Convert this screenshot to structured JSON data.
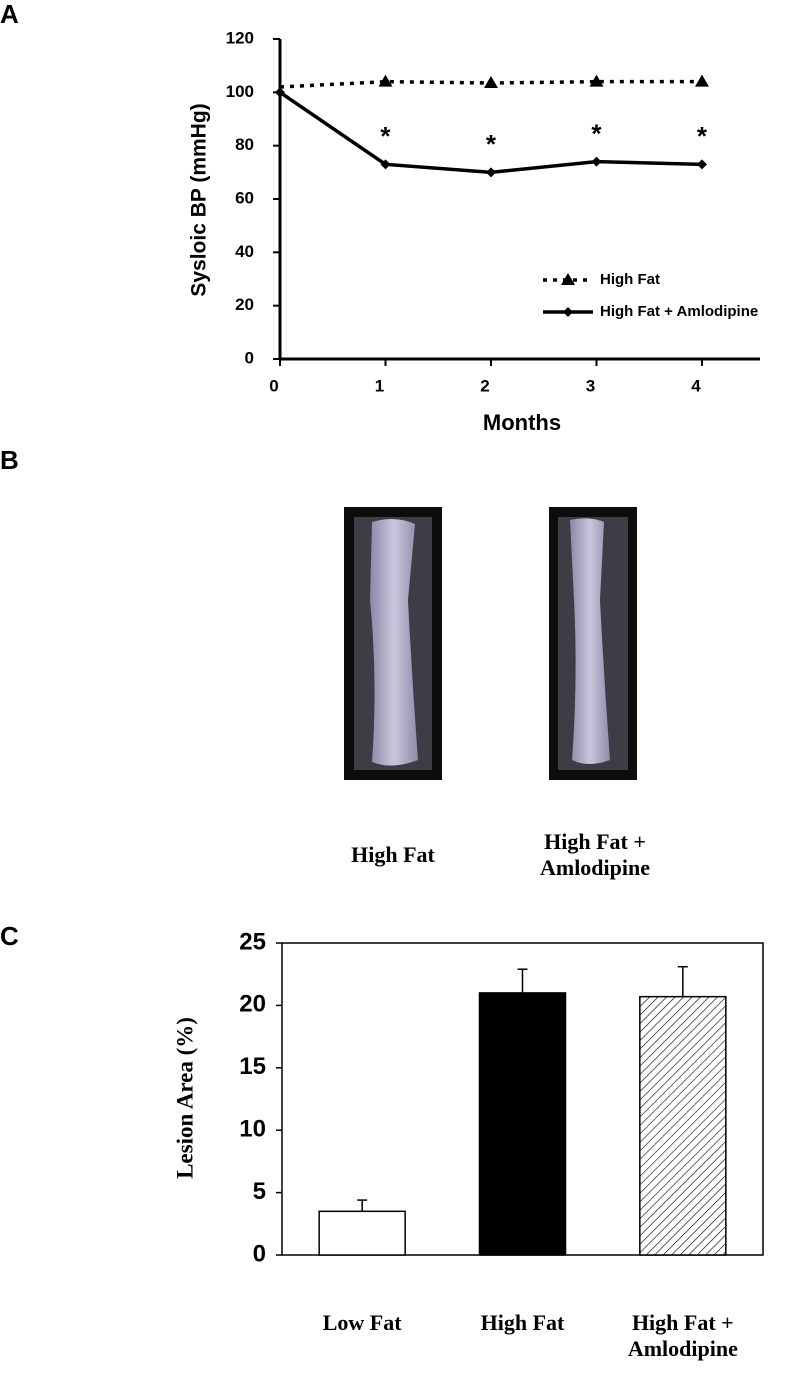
{
  "chart_data": [
    {
      "type": "line",
      "panel_label": "A",
      "x": [
        0,
        1,
        2,
        3,
        4
      ],
      "xlim": [
        0,
        4.55
      ],
      "xticks": [
        0,
        1,
        2,
        3,
        4
      ],
      "ylim": [
        0,
        120
      ],
      "yticks": [
        0,
        20,
        40,
        60,
        80,
        100,
        120
      ],
      "xlabel": "Months",
      "ylabel": "Sysloic BP (mmHg)",
      "series": [
        {
          "name": "High Fat",
          "color": "#000000",
          "dash": "dotted",
          "marker": "triangle",
          "values": [
            102,
            104,
            103.5,
            104,
            104
          ]
        },
        {
          "name": "High Fat + Amlodipine",
          "color": "#000000",
          "dash": "solid",
          "marker": "diamond",
          "values": [
            100,
            73,
            70,
            74,
            73
          ]
        }
      ],
      "annotations": [
        {
          "x": 1,
          "text": "*"
        },
        {
          "x": 2,
          "text": "*"
        },
        {
          "x": 3,
          "text": "*"
        },
        {
          "x": 4,
          "text": "*"
        }
      ],
      "legend": "lower right"
    },
    {
      "type": "bar",
      "panel_label": "C",
      "categories": [
        "Low Fat",
        "High Fat",
        "High Fat + Amlodipine"
      ],
      "values": [
        3.5,
        21,
        20.7
      ],
      "errors": [
        0.9,
        1.9,
        2.4
      ],
      "fills": [
        "#ffffff",
        "#000000",
        "#ffffff"
      ],
      "hatch": [
        false,
        false,
        true
      ],
      "ylim": [
        0,
        25
      ],
      "yticks": [
        0,
        5,
        10,
        15,
        20,
        25
      ],
      "ylabel": "Lesion Area (%)"
    }
  ],
  "image_panel": {
    "label": "B",
    "captions": [
      "High Fat",
      "High Fat + Amlodipine"
    ]
  }
}
